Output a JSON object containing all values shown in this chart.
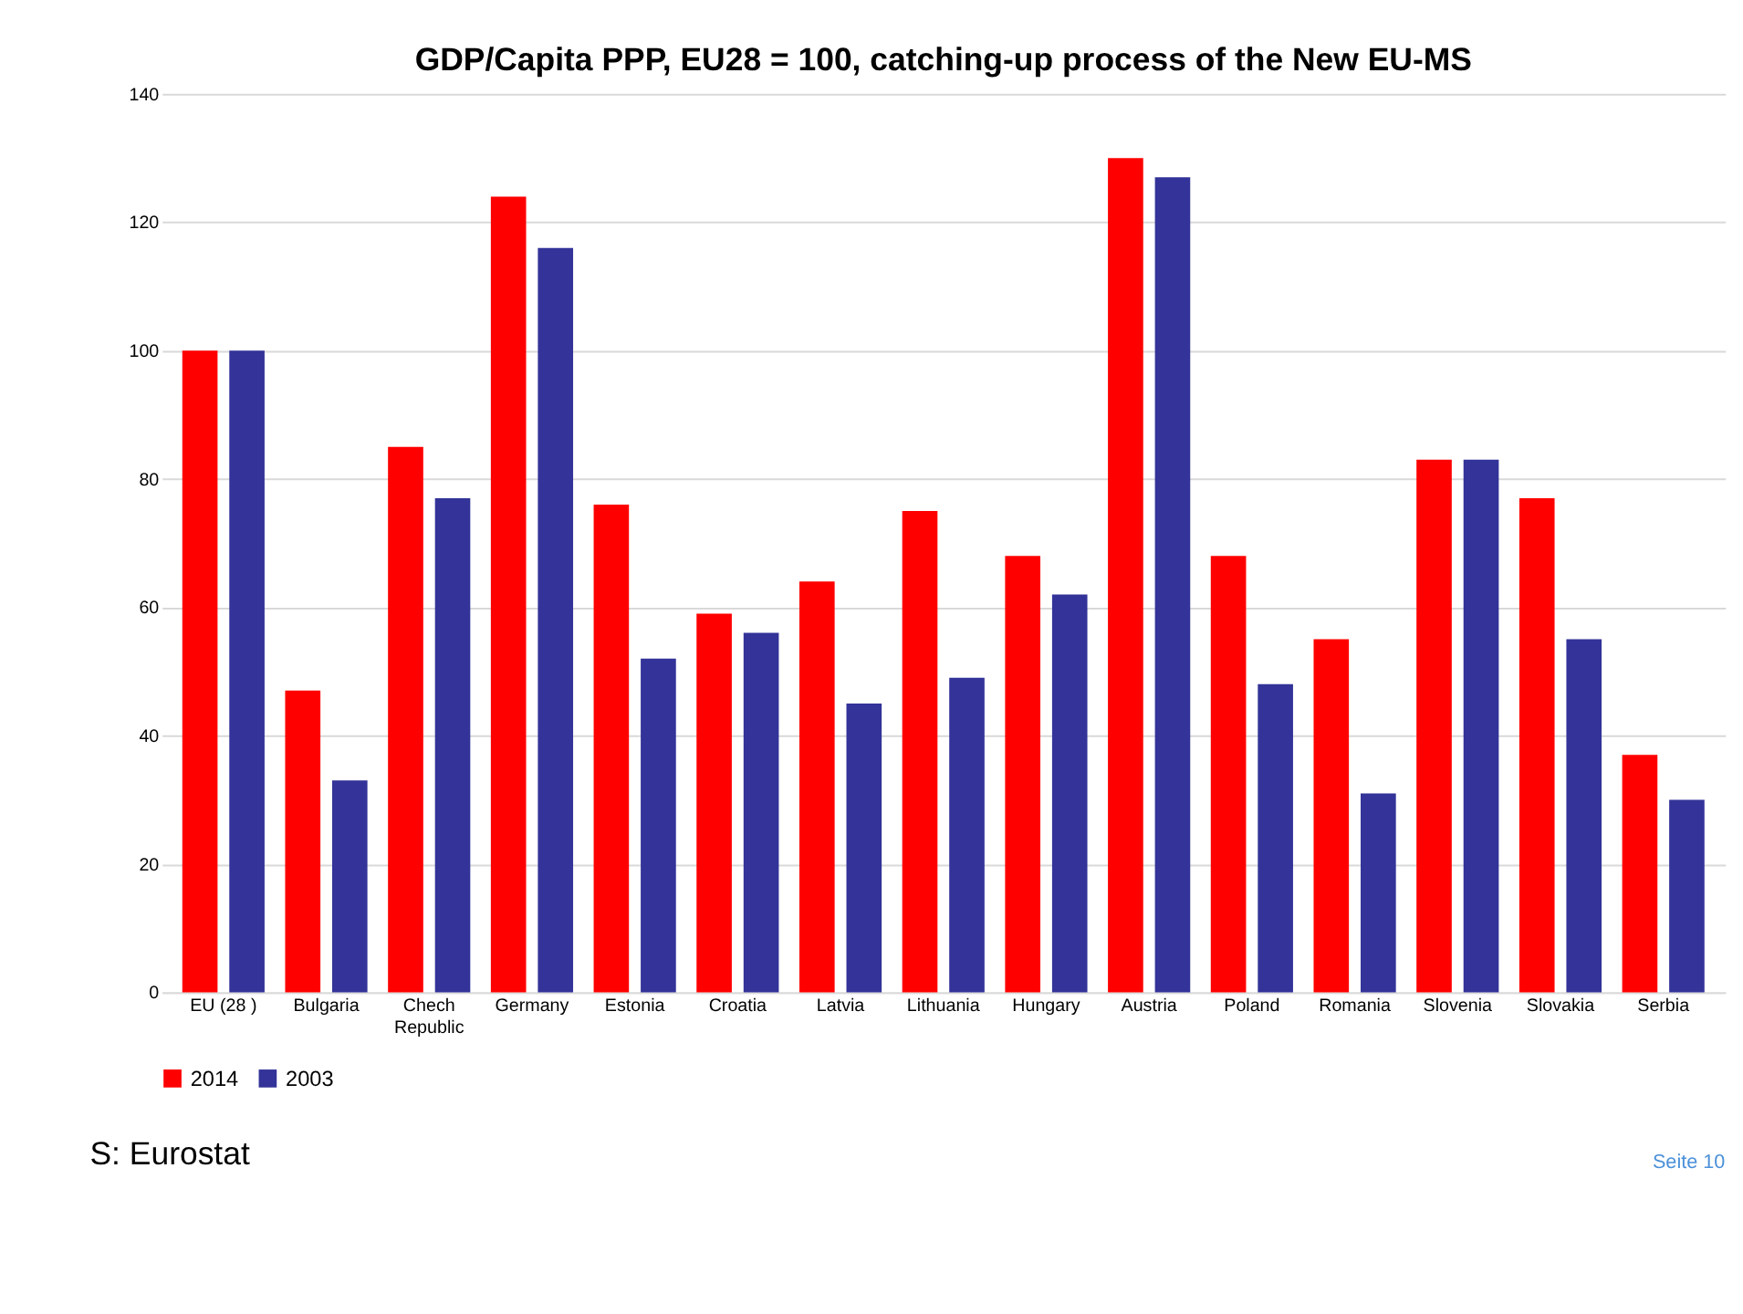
{
  "chart_data": {
    "type": "bar",
    "title": "GDP/Capita PPP, EU28 = 100, catching-up process of the New EU-MS",
    "categories": [
      "EU (28 )",
      "Bulgaria",
      "Chech Republic",
      "Germany",
      "Estonia",
      "Croatia",
      "Latvia",
      "Lithuania",
      "Hungary",
      "Austria",
      "Poland",
      "Romania",
      "Slovenia",
      "Slovakia",
      "Serbia"
    ],
    "series": [
      {
        "name": "2014",
        "color": "#ff0000",
        "values": [
          100,
          47,
          85,
          124,
          76,
          59,
          64,
          75,
          68,
          130,
          68,
          55,
          83,
          77,
          37
        ]
      },
      {
        "name": "2003",
        "color": "#333399",
        "values": [
          100,
          33,
          77,
          116,
          52,
          56,
          45,
          49,
          62,
          127,
          48,
          31,
          83,
          55,
          30
        ]
      }
    ],
    "ylim": [
      0,
      140
    ],
    "yticks": [
      0,
      20,
      40,
      60,
      80,
      100,
      120,
      140
    ],
    "grid": "y",
    "legend": "bottom",
    "annotations": [
      "S: Eurostat",
      "Seite 10"
    ]
  }
}
